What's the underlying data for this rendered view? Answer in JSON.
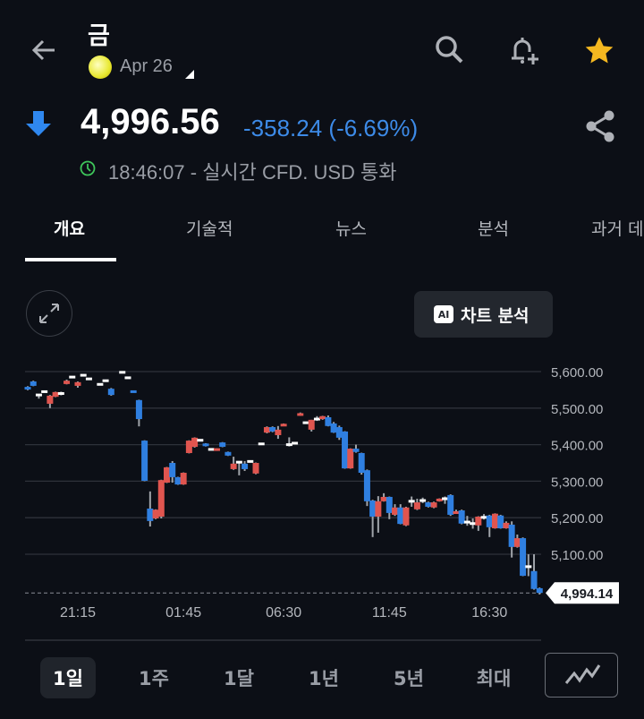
{
  "header": {
    "title": "금",
    "contract": "Apr 26",
    "back_icon": "arrow-left-icon",
    "actions": [
      "search-icon",
      "bell-plus-icon",
      "star-icon"
    ],
    "star_color": "#f5b820"
  },
  "quote": {
    "price": "4,996.56",
    "change": "-358.24 (-6.69%)",
    "direction": "down",
    "change_color": "#3d8be8",
    "time_info": "18:46:07 - 실시간 CFD. USD 통화",
    "share_icon": "share-icon"
  },
  "tabs": [
    {
      "label": "개요",
      "active": true
    },
    {
      "label": "기술적"
    },
    {
      "label": "뉴스"
    },
    {
      "label": "분석"
    },
    {
      "label": "과거 데"
    }
  ],
  "chart_toolbar": {
    "expand_icon": "expand-icon",
    "ai_badge": "AI",
    "ai_label": "차트 분석"
  },
  "ranges": [
    {
      "label": "1일",
      "active": true
    },
    {
      "label": "1주"
    },
    {
      "label": "1달"
    },
    {
      "label": "1년"
    },
    {
      "label": "5년"
    },
    {
      "label": "최대"
    }
  ],
  "chart_type_icon": "line-chart-icon",
  "chart_data": {
    "type": "candlestick",
    "up_color": "#e0554f",
    "down_color": "#2f7fe0",
    "wick_color": "#a0a4aa",
    "ylim": [
      4990,
      5600
    ],
    "yticks": [
      "5,600.00",
      "5,500.00",
      "5,400.00",
      "5,300.00",
      "5,200.00",
      "5,100.00"
    ],
    "ytick_values": [
      5600,
      5500,
      5400,
      5300,
      5200,
      5100
    ],
    "last_price": "4,994.14",
    "last_value": 4994.14,
    "xticks": [
      {
        "label": "21:15",
        "index": 9
      },
      {
        "label": "01:45",
        "index": 28
      },
      {
        "label": "06:30",
        "index": 46
      },
      {
        "label": "11:45",
        "index": 65
      },
      {
        "label": "16:30",
        "index": 83
      }
    ],
    "grid": true,
    "ohlc": [
      [
        5558,
        5560,
        5549,
        5551
      ],
      [
        5573,
        5575,
        5560,
        5561
      ],
      [
        5536,
        5538,
        5526,
        5536
      ],
      [
        5545,
        5546,
        5543,
        5545
      ],
      [
        5512,
        5536,
        5500,
        5534
      ],
      [
        5531,
        5545,
        5530,
        5544
      ],
      [
        5540,
        5545,
        5535,
        5540
      ],
      [
        5566,
        5578,
        5565,
        5575
      ],
      [
        5585,
        5586,
        5583,
        5585
      ],
      [
        5561,
        5573,
        5556,
        5571
      ],
      [
        5590,
        5591,
        5588,
        5590
      ],
      [
        5580,
        5581,
        5578,
        5580
      ],
      null,
      [
        5565,
        5566,
        5563,
        5565
      ],
      [
        5575,
        5576,
        5573,
        5575
      ],
      [
        5553,
        5555,
        5534,
        5536
      ],
      null,
      [
        5598,
        5599,
        5596,
        5598
      ],
      [
        5583,
        5584,
        5581,
        5583
      ],
      [
        5546,
        5547,
        5543,
        5544
      ],
      [
        5522,
        5523,
        5450,
        5470
      ],
      [
        5411,
        5412,
        5300,
        5301
      ],
      [
        5225,
        5272,
        5176,
        5191
      ],
      [
        5198,
        5223,
        5196,
        5222
      ],
      [
        5203,
        5304,
        5198,
        5303
      ],
      [
        5296,
        5339,
        5295,
        5338
      ],
      [
        5350,
        5355,
        5296,
        5311
      ],
      [
        5311,
        5312,
        5290,
        5291
      ],
      [
        5291,
        5324,
        5290,
        5323
      ],
      [
        5377,
        5412,
        5376,
        5411
      ],
      [
        5394,
        5420,
        5392,
        5419
      ],
      [
        5412,
        5413,
        5410,
        5412
      ],
      [
        5403,
        5404,
        5395,
        5396
      ],
      [
        5387,
        5388,
        5385,
        5387
      ],
      [
        5384,
        5390,
        5383,
        5389
      ],
      [
        5406,
        5407,
        5393,
        5394
      ],
      [
        5380,
        5381,
        5369,
        5370
      ],
      [
        5333,
        5367,
        5331,
        5348
      ],
      [
        5352,
        5355,
        5316,
        5352
      ],
      [
        5348,
        5355,
        5328,
        5333
      ],
      [
        5354,
        5355,
        5352,
        5354
      ],
      [
        5321,
        5351,
        5319,
        5350
      ],
      [
        5402,
        5403,
        5400,
        5402
      ],
      [
        5433,
        5450,
        5431,
        5448
      ],
      [
        5448,
        5450,
        5434,
        5436
      ],
      [
        5426,
        5451,
        5416,
        5441
      ],
      [
        5452,
        5458,
        5451,
        5455
      ],
      [
        5400,
        5420,
        5395,
        5400
      ],
      [
        5404,
        5405,
        5403,
        5404
      ],
      [
        5480,
        5488,
        5479,
        5485
      ],
      [
        5460,
        5461,
        5458,
        5460
      ],
      [
        5441,
        5468,
        5436,
        5468
      ],
      [
        5470,
        5478,
        5465,
        5470
      ],
      [
        5470,
        5479,
        5468,
        5478
      ],
      [
        5475,
        5480,
        5450,
        5451
      ],
      [
        5458,
        5462,
        5432,
        5433
      ],
      [
        5448,
        5452,
        5413,
        5419
      ],
      [
        5436,
        5437,
        5334,
        5335
      ],
      [
        5335,
        5390,
        5334,
        5389
      ],
      [
        5389,
        5400,
        5378,
        5380
      ],
      [
        5377,
        5378,
        5318,
        5323
      ],
      [
        5330,
        5332,
        5232,
        5245
      ],
      [
        5247,
        5249,
        5147,
        5203
      ],
      [
        5203,
        5259,
        5159,
        5245
      ],
      [
        5245,
        5267,
        5244,
        5257
      ],
      [
        5257,
        5258,
        5196,
        5213
      ],
      [
        5208,
        5237,
        5205,
        5228
      ],
      [
        5228,
        5237,
        5182,
        5183
      ],
      [
        5179,
        5230,
        5177,
        5228
      ],
      [
        5245,
        5258,
        5230,
        5245
      ],
      [
        5223,
        5252,
        5221,
        5242
      ],
      [
        5247,
        5255,
        5240,
        5247
      ],
      [
        5242,
        5244,
        5228,
        5230
      ],
      [
        5228,
        5244,
        5226,
        5242
      ],
      [
        5245,
        5253,
        5244,
        5252
      ],
      [
        5252,
        5258,
        5238,
        5252
      ],
      [
        5262,
        5264,
        5205,
        5208
      ],
      [
        5213,
        5222,
        5211,
        5215
      ],
      [
        5220,
        5222,
        5182,
        5184
      ],
      [
        5188,
        5205,
        5178,
        5188
      ],
      [
        5184,
        5198,
        5170,
        5184
      ],
      [
        5179,
        5204,
        5164,
        5203
      ],
      [
        5201,
        5210,
        5195,
        5201
      ],
      [
        5206,
        5208,
        5147,
        5174
      ],
      [
        5171,
        5212,
        5170,
        5211
      ],
      [
        5206,
        5208,
        5170,
        5171
      ],
      [
        5171,
        5190,
        5170,
        5186
      ],
      [
        5181,
        5190,
        5091,
        5120
      ],
      [
        5120,
        5154,
        5118,
        5144
      ],
      [
        5144,
        5146,
        5040,
        5041
      ],
      [
        5066,
        5100,
        5040,
        5066
      ],
      [
        5054,
        5100,
        5003,
        5005
      ],
      [
        5007,
        5009,
        4990,
        4994.14
      ]
    ]
  }
}
